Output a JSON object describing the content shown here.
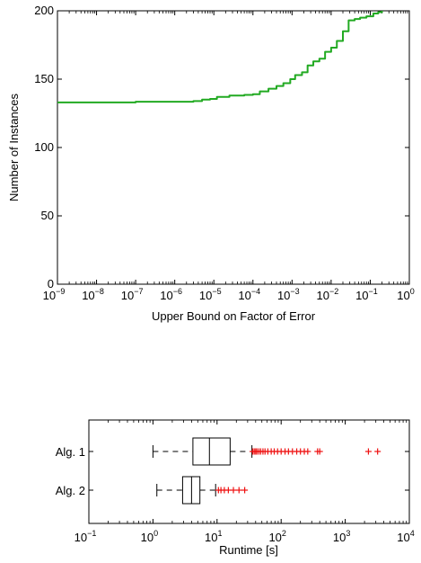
{
  "chart_data": [
    {
      "type": "line",
      "xlabel": "Upper Bound on Factor of Error",
      "ylabel": "Number of Instances",
      "xscale": "log",
      "xlim": [
        1e-09,
        1
      ],
      "ylim": [
        0,
        200
      ],
      "grid": false,
      "xticks": [
        {
          "base": "10",
          "exp": "−9"
        },
        {
          "base": "10",
          "exp": "−8"
        },
        {
          "base": "10",
          "exp": "−7"
        },
        {
          "base": "10",
          "exp": "−6"
        },
        {
          "base": "10",
          "exp": "−5"
        },
        {
          "base": "10",
          "exp": "−4"
        },
        {
          "base": "10",
          "exp": "−3"
        },
        {
          "base": "10",
          "exp": "−2"
        },
        {
          "base": "10",
          "exp": "−1"
        },
        {
          "base": "10",
          "exp": "0"
        }
      ],
      "yticks": [
        "0",
        "50",
        "100",
        "150",
        "200"
      ],
      "series": [
        {
          "color": "#22aa22",
          "x": [
            1e-09,
            3e-08,
            1e-07,
            3e-07,
            3e-06,
            5e-06,
            8e-06,
            1.2e-05,
            2.5e-05,
            6e-05,
            0.0001,
            0.00015,
            0.00025,
            0.0004,
            0.0006,
            0.0009,
            0.0012,
            0.0018,
            0.0025,
            0.0035,
            0.005,
            0.007,
            0.01,
            0.014,
            0.02,
            0.028,
            0.04,
            0.055,
            0.08,
            0.12,
            0.16,
            0.2
          ],
          "y": [
            133,
            133,
            133.5,
            133.5,
            134,
            135,
            135.5,
            137,
            138,
            138.5,
            139,
            141,
            143,
            145,
            147,
            150,
            153,
            155,
            160,
            163,
            165,
            170,
            173,
            178,
            185,
            193,
            194,
            195,
            196,
            198,
            199,
            200
          ]
        }
      ]
    },
    {
      "type": "box",
      "xlabel": "Runtime [s]",
      "xscale": "log",
      "xlim": [
        0.1,
        10000
      ],
      "grid": false,
      "xticks": [
        {
          "base": "10",
          "exp": "−1"
        },
        {
          "base": "10",
          "exp": "0"
        },
        {
          "base": "10",
          "exp": "1"
        },
        {
          "base": "10",
          "exp": "2"
        },
        {
          "base": "10",
          "exp": "3"
        },
        {
          "base": "10",
          "exp": "4"
        }
      ],
      "categories": [
        "Alg. 1",
        "Alg. 2"
      ],
      "boxes": [
        {
          "name": "Alg. 1",
          "whisker_low": 1.0,
          "q1": 4.2,
          "median": 7.6,
          "q3": 16.0,
          "whisker_high": 35.0,
          "outliers": [
            36,
            38,
            40,
            42,
            45,
            48,
            52,
            56,
            62,
            70,
            78,
            88,
            100,
            115,
            130,
            150,
            175,
            200,
            230,
            260,
            370,
            400,
            2300,
            3200
          ]
        },
        {
          "name": "Alg. 2",
          "whisker_low": 1.15,
          "q1": 2.9,
          "median": 4.0,
          "q3": 5.4,
          "whisker_high": 9.5,
          "outliers": [
            10.5,
            11.5,
            13,
            15,
            18,
            22,
            27
          ]
        }
      ],
      "outlier_color": "#ee1111",
      "outlier_marker": "+"
    }
  ]
}
